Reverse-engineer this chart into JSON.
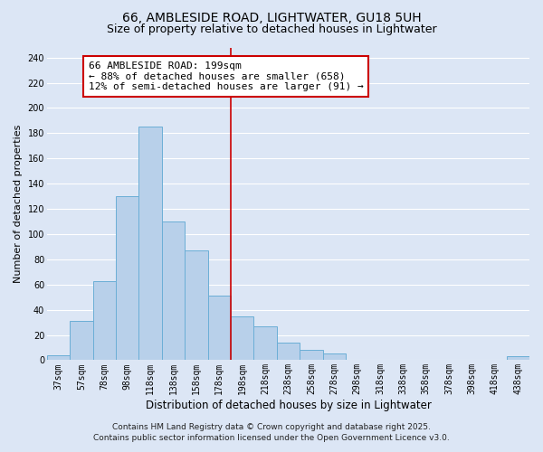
{
  "title": "66, AMBLESIDE ROAD, LIGHTWATER, GU18 5UH",
  "subtitle": "Size of property relative to detached houses in Lightwater",
  "xlabel": "Distribution of detached houses by size in Lightwater",
  "ylabel": "Number of detached properties",
  "bin_labels": [
    "37sqm",
    "57sqm",
    "78sqm",
    "98sqm",
    "118sqm",
    "138sqm",
    "158sqm",
    "178sqm",
    "198sqm",
    "218sqm",
    "238sqm",
    "258sqm",
    "278sqm",
    "298sqm",
    "318sqm",
    "338sqm",
    "358sqm",
    "378sqm",
    "398sqm",
    "418sqm",
    "438sqm"
  ],
  "bin_values": [
    4,
    31,
    63,
    130,
    185,
    110,
    87,
    51,
    35,
    27,
    14,
    8,
    5,
    0,
    0,
    0,
    0,
    0,
    0,
    0,
    3
  ],
  "bar_color": "#b8d0ea",
  "bar_edge_color": "#6baed6",
  "vline_x_index": 8,
  "vline_color": "#cc0000",
  "annotation_line1": "66 AMBLESIDE ROAD: 199sqm",
  "annotation_line2": "← 88% of detached houses are smaller (658)",
  "annotation_line3": "12% of semi-detached houses are larger (91) →",
  "annotation_box_edge": "#cc0000",
  "annotation_box_face": "#ffffff",
  "ylim": [
    0,
    248
  ],
  "yticks": [
    0,
    20,
    40,
    60,
    80,
    100,
    120,
    140,
    160,
    180,
    200,
    220,
    240
  ],
  "bg_color": "#dce6f5",
  "plot_bg_color": "#dce6f5",
  "grid_color": "#ffffff",
  "footnote_line1": "Contains HM Land Registry data © Crown copyright and database right 2025.",
  "footnote_line2": "Contains public sector information licensed under the Open Government Licence v3.0.",
  "title_fontsize": 10,
  "subtitle_fontsize": 9,
  "xlabel_fontsize": 8.5,
  "ylabel_fontsize": 8,
  "tick_fontsize": 7,
  "annotation_fontsize": 8,
  "footnote_fontsize": 6.5
}
